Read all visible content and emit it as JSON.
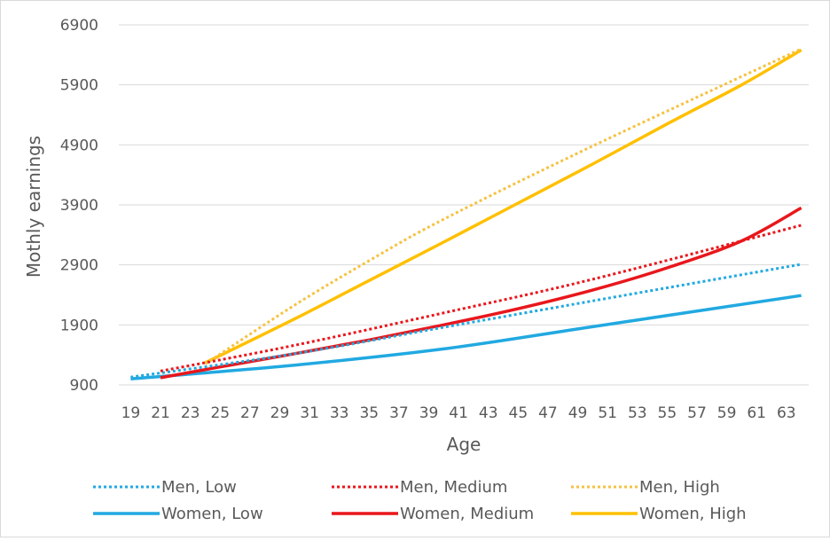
{
  "chart_data": {
    "type": "line",
    "title": "",
    "xlabel": "Age",
    "ylabel": "Mothly earnings",
    "x_ticks": [
      "19",
      "21",
      "23",
      "25",
      "27",
      "29",
      "31",
      "33",
      "35",
      "37",
      "39",
      "41",
      "43",
      "45",
      "47",
      "49",
      "51",
      "53",
      "55",
      "57",
      "59",
      "61",
      "63"
    ],
    "xlim": [
      19,
      64
    ],
    "ylim": [
      900,
      6900
    ],
    "y_ticks": [
      "900",
      "1900",
      "2900",
      "3900",
      "4900",
      "5900",
      "6900"
    ],
    "grid": "horizontal",
    "legend_position": "bottom",
    "series": [
      {
        "name": "Men, Low",
        "color": "#21A9E1",
        "dash": "dotted",
        "x": [
          19,
          30,
          40,
          50,
          64
        ],
        "y": [
          1030,
          1420,
          1860,
          2300,
          2910
        ]
      },
      {
        "name": "Men, Medium",
        "color": "#E8171C",
        "dash": "dotted",
        "x": [
          21,
          30,
          40,
          50,
          64
        ],
        "y": [
          1130,
          1560,
          2100,
          2660,
          3560
        ]
      },
      {
        "name": "Men, High",
        "color": "#F5C242",
        "dash": "dotted",
        "x": [
          24,
          30,
          35,
          40,
          50,
          64
        ],
        "y": [
          1250,
          2230,
          2970,
          3660,
          4880,
          6500
        ]
      },
      {
        "name": "Women, Low",
        "color": "#21A9E1",
        "dash": "solid",
        "x": [
          19,
          30,
          40,
          50,
          64
        ],
        "y": [
          1000,
          1230,
          1500,
          1870,
          2390
        ]
      },
      {
        "name": "Women, Medium",
        "color": "#E8171C",
        "dash": "solid",
        "x": [
          21,
          25,
          30,
          35,
          40,
          45,
          50,
          55,
          60,
          64
        ],
        "y": [
          1020,
          1200,
          1420,
          1650,
          1900,
          2170,
          2480,
          2850,
          3300,
          3850
        ]
      },
      {
        "name": "Women, High",
        "color": "#FFC000",
        "dash": "solid",
        "x": [
          24,
          30,
          35,
          40,
          45,
          50,
          55,
          60,
          64
        ],
        "y": [
          1270,
          2000,
          2640,
          3280,
          3930,
          4580,
          5250,
          5900,
          6480
        ]
      }
    ]
  }
}
